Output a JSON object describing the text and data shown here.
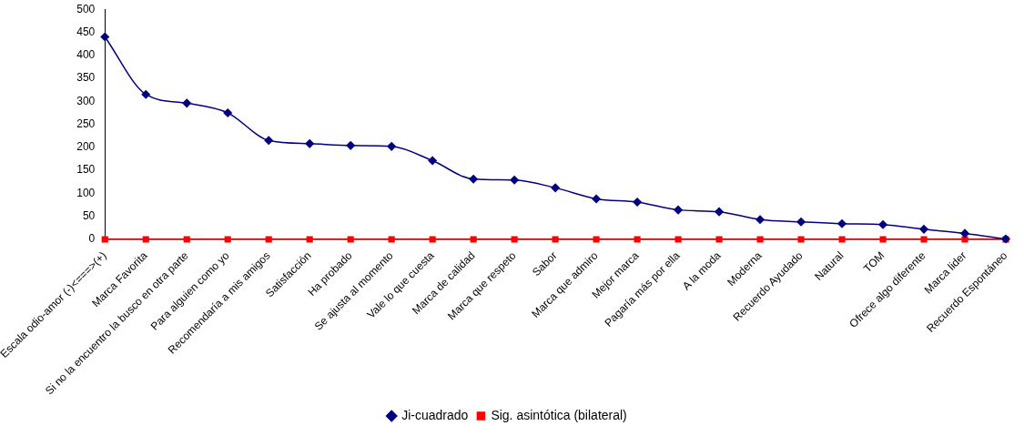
{
  "chart_data": {
    "type": "line",
    "categories": [
      "Escala odio-amor (-)<===>(+)",
      "Marca Favorita",
      "Si no la encuentro la busco en otra parte",
      "Para alguien como yo",
      "Recomendaría a mis amigos",
      "Satisfacción",
      "Ha probado",
      "Se ajusta al momento",
      "Vale lo que cuesta",
      "Marca de calidad",
      "Marca que respeto",
      "Sabor",
      "Marca que admiro",
      "Mejor marca",
      "Pagaría más por ella",
      "A la moda",
      "Moderna",
      "Recuerdo Ayudado",
      "Natural",
      "TOM",
      "Ofrece algo diferente",
      "Marca lider",
      "Recuerdo Espontáneo"
    ],
    "series": [
      {
        "name": "Ji-cuadrado",
        "color": "#000080",
        "marker": "diamond",
        "values": [
          440,
          315,
          296,
          275,
          215,
          208,
          204,
          202,
          171,
          131,
          129,
          112,
          88,
          81,
          64,
          60,
          43,
          38,
          34,
          32,
          22,
          13,
          1
        ]
      },
      {
        "name": "Sig. asintótica (bilateral)",
        "color": "#ff0000",
        "marker": "square",
        "values": [
          0,
          0,
          0,
          0,
          0,
          0,
          0,
          0,
          0,
          0,
          0,
          0,
          0,
          0,
          0,
          0,
          0,
          0,
          0,
          0,
          0,
          0,
          0
        ]
      }
    ],
    "ylim": [
      0,
      500
    ],
    "yticks": [
      0,
      50,
      100,
      150,
      200,
      250,
      300,
      350,
      400,
      450,
      500
    ],
    "grid": false,
    "legend": "bottom"
  }
}
